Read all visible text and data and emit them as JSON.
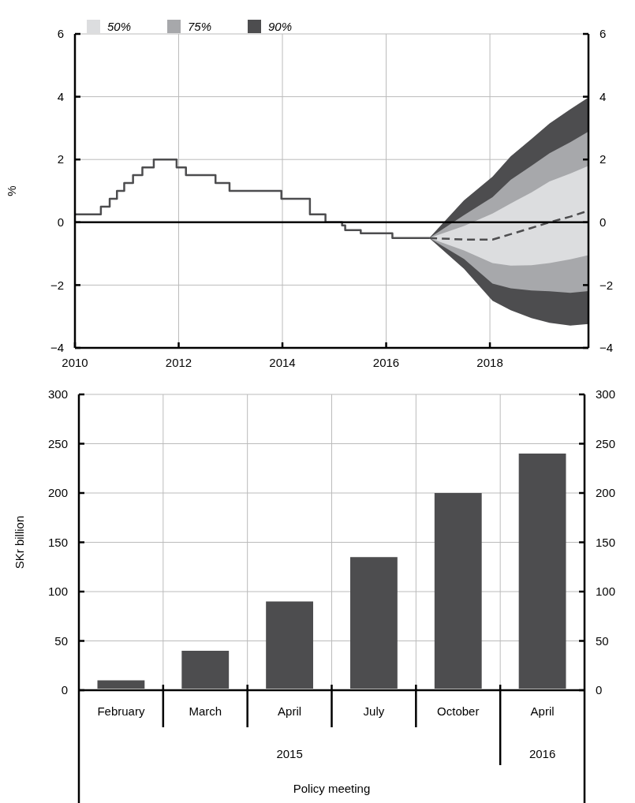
{
  "chart_data": [
    {
      "type": "line",
      "ylabel": "%",
      "xlim": [
        2010,
        2019.9
      ],
      "xticks": [
        2010,
        2012,
        2014,
        2016,
        2018
      ],
      "ylim": [
        -4,
        6
      ],
      "yticks": [
        {
          "value": -4,
          "label": "−4"
        },
        {
          "value": -2,
          "label": "−2"
        },
        0,
        2,
        4,
        6
      ],
      "y2lim": [
        -4,
        6
      ],
      "y2ticks": [
        {
          "value": -4,
          "label": "−4"
        },
        {
          "value": -2,
          "label": "−2"
        },
        0,
        2,
        4,
        6
      ],
      "grid": true,
      "legend": "top left",
      "ref_lines": [
        {
          "axis": "y",
          "value": 0,
          "color": "#000000"
        }
      ],
      "series": [
        {
          "name": "90%",
          "type": "line",
          "color": "#4d4d4f",
          "line_style": "dashed",
          "x": [
            2016.83,
            2017.5,
            2018.05,
            2018.4,
            2018.8,
            2019.15,
            2019.55,
            2019.9
          ],
          "values": [
            -0.5,
            -0.55,
            -0.55,
            -0.38,
            -0.18,
            0.0,
            0.18,
            0.37
          ],
          "lower": [
            -0.5,
            -1.48,
            -2.5,
            -2.8,
            -3.05,
            -3.2,
            -3.29,
            -3.24
          ],
          "upper": [
            -0.5,
            0.7,
            1.45,
            2.1,
            2.65,
            3.15,
            3.6,
            3.98
          ]
        },
        {
          "name": "75%",
          "type": "line",
          "color": "#a7a8ab",
          "line_style": "dashed",
          "x": [
            2016.83,
            2017.5,
            2018.05,
            2018.4,
            2018.8,
            2019.15,
            2019.55,
            2019.9
          ],
          "values": [
            null,
            null,
            null,
            null,
            null,
            null,
            null,
            null
          ],
          "lower": [
            -0.5,
            -1.17,
            -1.95,
            -2.1,
            -2.17,
            -2.2,
            -2.25,
            -2.19
          ],
          "upper": [
            -0.5,
            0.23,
            0.8,
            1.35,
            1.8,
            2.2,
            2.55,
            2.89
          ]
        },
        {
          "name": "50%",
          "type": "line",
          "color": "#dcdddf",
          "line_style": "dashed",
          "x": [
            2016.83,
            2017.5,
            2018.05,
            2018.4,
            2018.8,
            2019.15,
            2019.55,
            2019.9
          ],
          "values": [
            null,
            null,
            null,
            null,
            null,
            null,
            null,
            null
          ],
          "lower": [
            -0.5,
            -0.9,
            -1.3,
            -1.38,
            -1.37,
            -1.3,
            -1.18,
            -1.05
          ],
          "upper": [
            -0.5,
            -0.12,
            0.28,
            0.6,
            0.95,
            1.3,
            1.55,
            1.8
          ]
        },
        {
          "type": "step",
          "color": "#4d4d4f",
          "line_style": "solid",
          "x": [
            2010,
            2010.5,
            2010.67,
            2010.81,
            2010.95,
            2011.12,
            2011.3,
            2011.52,
            2011.96,
            2012.14,
            2012.71,
            2012.98,
            2013.98,
            2014.53,
            2014.83,
            2015.15,
            2015.21,
            2015.51,
            2016.12,
            2016.83
          ],
          "values": [
            0.25,
            0.5,
            0.75,
            1.0,
            1.25,
            1.5,
            1.75,
            2.0,
            1.75,
            1.5,
            1.25,
            1.0,
            0.75,
            0.25,
            0.0,
            -0.1,
            -0.25,
            -0.35,
            -0.5,
            -0.5
          ]
        }
      ]
    },
    {
      "type": "bar",
      "ylabel": "SKr billion",
      "xlabel": "Policy meeting",
      "categories": [
        "February",
        "March",
        "April",
        "July",
        "October",
        "April"
      ],
      "values": [
        10,
        40,
        90,
        135,
        200,
        240
      ],
      "color": "#4d4d4f",
      "ylim": [
        0,
        300
      ],
      "yticks": [
        0,
        50,
        100,
        150,
        200,
        250,
        300
      ],
      "y2lim": [
        0,
        300
      ],
      "y2ticks": [
        0,
        50,
        100,
        150,
        200,
        250,
        300
      ],
      "grid": true,
      "annotations": [
        "2015",
        "2016"
      ]
    }
  ]
}
